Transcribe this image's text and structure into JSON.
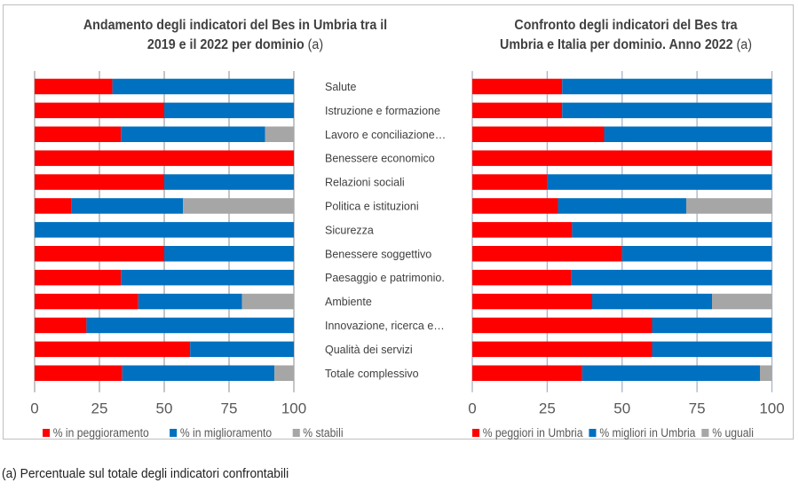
{
  "footnote": "(a) Percentuale sul totale degli indicatori confrontabili",
  "colors": {
    "red": "#ff0000",
    "blue": "#0070c0",
    "grey": "#a6a6a6"
  },
  "chart_data": [
    {
      "type": "bar",
      "orientation": "horizontal",
      "stacked": "100%",
      "title": "Andamento degli indicatori del Bes in Umbria tra il 2019 e il 2022 per dominio",
      "title_note": "(a)",
      "xlabel": "",
      "ylabel": "",
      "xlim": [
        0,
        100
      ],
      "xticks": [
        "0",
        "25",
        "50",
        "75",
        "100"
      ],
      "grid": true,
      "legend_position": "bottom",
      "categories": [
        "Salute",
        "Istruzione e formazione",
        "Lavoro e conciliazione…",
        "Benessere economico",
        "Relazioni sociali",
        "Politica e istituzioni",
        "Sicurezza",
        "Benessere soggettivo",
        "Paesaggio e patrimonio.",
        "Ambiente",
        "Innovazione, ricerca e…",
        "Qualità dei servizi",
        "Totale complessivo"
      ],
      "series": [
        {
          "name": "% in peggioramento",
          "color": "#ff0000",
          "values": [
            30,
            50,
            33.3,
            100,
            50,
            14.3,
            0,
            50,
            33.3,
            40,
            20,
            60,
            33.8
          ]
        },
        {
          "name": "% in miglioramento",
          "color": "#0070c0",
          "values": [
            70,
            50,
            55.6,
            0,
            50,
            42.9,
            100,
            50,
            66.7,
            40,
            80,
            40,
            58.7
          ]
        },
        {
          "name": "% stabili",
          "color": "#a6a6a6",
          "values": [
            0,
            0,
            11.1,
            0,
            0,
            42.9,
            0,
            0,
            0,
            20,
            0,
            0,
            7.5
          ]
        }
      ]
    },
    {
      "type": "bar",
      "orientation": "horizontal",
      "stacked": "100%",
      "title": "Confronto degli indicatori del Bes tra Umbria e Italia per dominio. Anno 2022",
      "title_note": "(a)",
      "xlabel": "",
      "ylabel": "",
      "xlim": [
        0,
        100
      ],
      "xticks": [
        "0",
        "25",
        "50",
        "75",
        "100"
      ],
      "grid": true,
      "legend_position": "bottom",
      "categories": [
        "Salute",
        "Istruzione e formazione",
        "Lavoro e conciliazione…",
        "Benessere economico",
        "Relazioni sociali",
        "Politica e istituzioni",
        "Sicurezza",
        "Benessere soggettivo",
        "Paesaggio e patrimonio.",
        "Ambiente",
        "Innovazione, ricerca e…",
        "Qualità dei servizi",
        "Totale complessivo"
      ],
      "series": [
        {
          "name": "% peggiori in Umbria",
          "color": "#ff0000",
          "values": [
            30,
            30,
            44,
            100,
            25,
            28.6,
            33.3,
            50,
            33,
            40,
            60,
            60,
            36.7
          ]
        },
        {
          "name": "% migliori in Umbria",
          "color": "#0070c0",
          "values": [
            70,
            70,
            56,
            0,
            75,
            42.8,
            66.7,
            50,
            67,
            40,
            40,
            40,
            59.3
          ]
        },
        {
          "name": "% uguali",
          "color": "#a6a6a6",
          "values": [
            0,
            0,
            0,
            0,
            0,
            28.6,
            0,
            0,
            0,
            20,
            0,
            0,
            4
          ]
        }
      ]
    }
  ],
  "titles": {
    "left_line1": "Andamento degli indicatori del Bes in Umbria tra il",
    "left_line2": "2019 e il 2022 per dominio",
    "left_note": "(a)",
    "right_line1": "Confronto degli indicatori del Bes tra",
    "right_line2": "Umbria e Italia per dominio. Anno 2022",
    "right_note": "(a)"
  },
  "legends": {
    "left": [
      "% in peggioramento",
      "% in miglioramento",
      "% stabili"
    ],
    "right": [
      "% peggiori in Umbria",
      "% migliori in Umbria",
      "% uguali"
    ]
  }
}
